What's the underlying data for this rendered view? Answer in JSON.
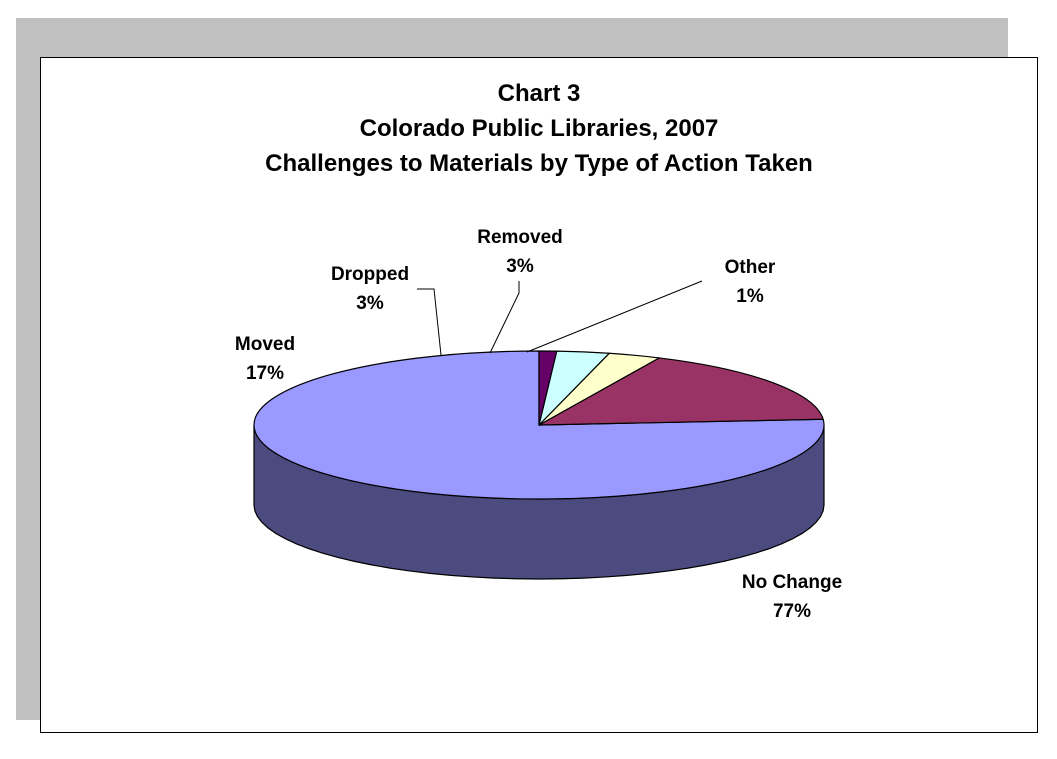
{
  "chart_data": {
    "type": "pie",
    "style": "3d",
    "title_lines": [
      "Chart 3",
      "Colorado Public Libraries, 2007",
      "Challenges to Materials by Type of Action Taken"
    ],
    "slices": [
      {
        "name": "No Change",
        "percent_label": "77%",
        "value": 77,
        "color": "#9999ff",
        "side_color": "#4b4b7f"
      },
      {
        "name": "Moved",
        "percent_label": "17%",
        "value": 17,
        "color": "#993366",
        "side_color": "#4c1933"
      },
      {
        "name": "Dropped",
        "percent_label": "3%",
        "value": 3,
        "color": "#ffffcc",
        "side_color": "#807f66"
      },
      {
        "name": "Removed",
        "percent_label": "3%",
        "value": 3,
        "color": "#ccffff",
        "side_color": "#667f7f"
      },
      {
        "name": "Other",
        "percent_label": "1%",
        "value": 1,
        "color": "#660066",
        "side_color": "#330033"
      }
    ],
    "legend": "none"
  }
}
